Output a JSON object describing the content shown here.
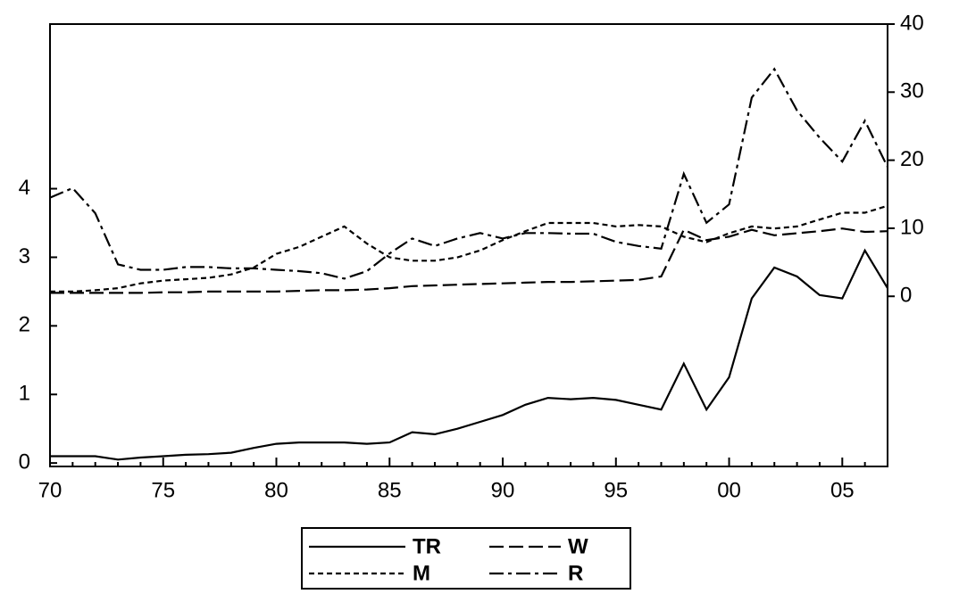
{
  "chart_data": {
    "type": "line",
    "categories": [
      "70",
      null,
      null,
      null,
      null,
      "75",
      null,
      null,
      null,
      null,
      "80",
      null,
      null,
      null,
      null,
      "85",
      null,
      null,
      null,
      null,
      "90",
      null,
      null,
      null,
      null,
      "95",
      null,
      null,
      null,
      null,
      "00",
      null,
      null,
      null,
      null,
      "05",
      null,
      null
    ],
    "series": [
      {
        "name": "TR",
        "color": "#000000",
        "dash": "solid",
        "values": [
          0.1,
          0.1,
          0.1,
          0.05,
          0.08,
          0.1,
          0.12,
          0.13,
          0.15,
          0.22,
          0.28,
          0.3,
          0.3,
          0.3,
          0.28,
          0.3,
          0.45,
          0.42,
          0.5,
          0.6,
          0.7,
          0.85,
          0.95,
          0.93,
          0.95,
          0.92,
          0.85,
          0.78,
          1.45,
          0.78,
          1.25,
          2.4,
          2.85,
          2.72,
          2.45,
          2.4,
          3.1,
          2.55
        ]
      },
      {
        "name": "W",
        "color": "#000000",
        "dash": "long",
        "values": [
          2.48,
          2.48,
          2.48,
          2.48,
          2.48,
          2.49,
          2.49,
          2.5,
          2.5,
          2.5,
          2.5,
          2.51,
          2.52,
          2.52,
          2.53,
          2.55,
          2.58,
          2.59,
          2.6,
          2.61,
          2.62,
          2.63,
          2.64,
          2.64,
          2.65,
          2.66,
          2.67,
          2.72,
          3.4,
          3.25,
          3.3,
          3.4,
          3.32,
          3.35,
          3.38,
          3.42,
          3.37,
          3.38
        ]
      },
      {
        "name": "M",
        "color": "#000000",
        "dash": "short",
        "values": [
          2.5,
          2.5,
          2.52,
          2.55,
          2.62,
          2.66,
          2.68,
          2.7,
          2.75,
          2.85,
          3.05,
          3.15,
          3.3,
          3.45,
          3.2,
          3.0,
          2.95,
          2.95,
          3.0,
          3.1,
          3.25,
          3.38,
          3.5,
          3.5,
          3.5,
          3.45,
          3.47,
          3.45,
          3.3,
          3.22,
          3.35,
          3.45,
          3.42,
          3.45,
          3.55,
          3.65,
          3.65,
          3.75
        ]
      },
      {
        "name": "R",
        "color": "#000000",
        "dash": "dash-dot",
        "axis": "y2",
        "values": [
          14.5,
          15.9,
          12.2,
          4.7,
          3.9,
          3.9,
          4.3,
          4.3,
          4.1,
          4.1,
          3.9,
          3.7,
          3.4,
          2.6,
          3.7,
          6.3,
          8.5,
          7.4,
          8.5,
          9.3,
          8.5,
          9.3,
          9.3,
          9.2,
          9.2,
          8.0,
          7.4,
          7.0,
          18,
          10.8,
          13.5,
          29.2,
          33.4,
          27.3,
          23.3,
          19.8,
          25.8,
          19
        ]
      }
    ],
    "ylim": [
      -0.05,
      6.4
    ],
    "yticks": [
      0,
      1,
      2,
      3,
      4
    ],
    "y2lim": [
      -25,
      40
    ],
    "y2ticks": [
      0,
      10,
      20,
      30,
      40
    ],
    "grid": false,
    "legend": "bottom"
  }
}
